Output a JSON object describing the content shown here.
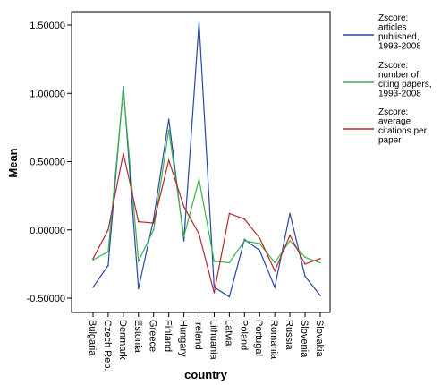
{
  "chart_data": {
    "type": "line",
    "xlabel": "country",
    "ylabel": "Mean",
    "ylim": [
      -0.6,
      1.65
    ],
    "yticks": [
      {
        "value": 1.5,
        "label": "1.50000"
      },
      {
        "value": 1.0,
        "label": "1.00000"
      },
      {
        "value": 0.5,
        "label": "0.50000"
      },
      {
        "value": 0.0,
        "label": "0.00000"
      },
      {
        "value": -0.5,
        "label": "-0.50000"
      }
    ],
    "grid": false,
    "legend_position": "right",
    "categories": [
      "Bulgaria",
      "Czech Rep.",
      "Denmark",
      "Estonia",
      "Greece",
      "Finland",
      "Hungary",
      "Ireland",
      "Lithuania",
      "Latvia",
      "Poland",
      "Portugal",
      "Romania",
      "Russia",
      "Slovenia",
      "Slovakia"
    ],
    "series": [
      {
        "name": "Zscore: articles published, 1993-2008",
        "color": "#2846a8",
        "values": [
          -0.42,
          -0.26,
          1.05,
          -0.43,
          0.08,
          0.81,
          -0.08,
          1.52,
          -0.42,
          -0.49,
          -0.07,
          -0.15,
          -0.42,
          0.12,
          -0.34,
          -0.48
        ]
      },
      {
        "name": "Zscore: number of citing papers, 1993-2008",
        "color": "#3cb44b",
        "values": [
          -0.22,
          -0.16,
          1.03,
          -0.23,
          0.0,
          0.73,
          -0.05,
          0.37,
          -0.23,
          -0.24,
          -0.08,
          -0.1,
          -0.24,
          -0.08,
          -0.2,
          -0.24
        ]
      },
      {
        "name": "Zscore: average citations per paper",
        "color": "#b4282d",
        "values": [
          -0.21,
          0.0,
          0.56,
          0.06,
          0.05,
          0.51,
          0.17,
          -0.03,
          -0.46,
          0.12,
          0.08,
          -0.06,
          -0.3,
          -0.04,
          -0.25,
          -0.21
        ]
      }
    ],
    "legend": [
      {
        "lines": [
          "Zscore:",
          "articles",
          "published,",
          "1993-2008"
        ]
      },
      {
        "lines": [
          "Zscore:",
          "number of",
          "citing papers,",
          "1993-2008"
        ]
      },
      {
        "lines": [
          "Zscore:",
          "average",
          "citations per",
          "paper"
        ]
      }
    ]
  }
}
